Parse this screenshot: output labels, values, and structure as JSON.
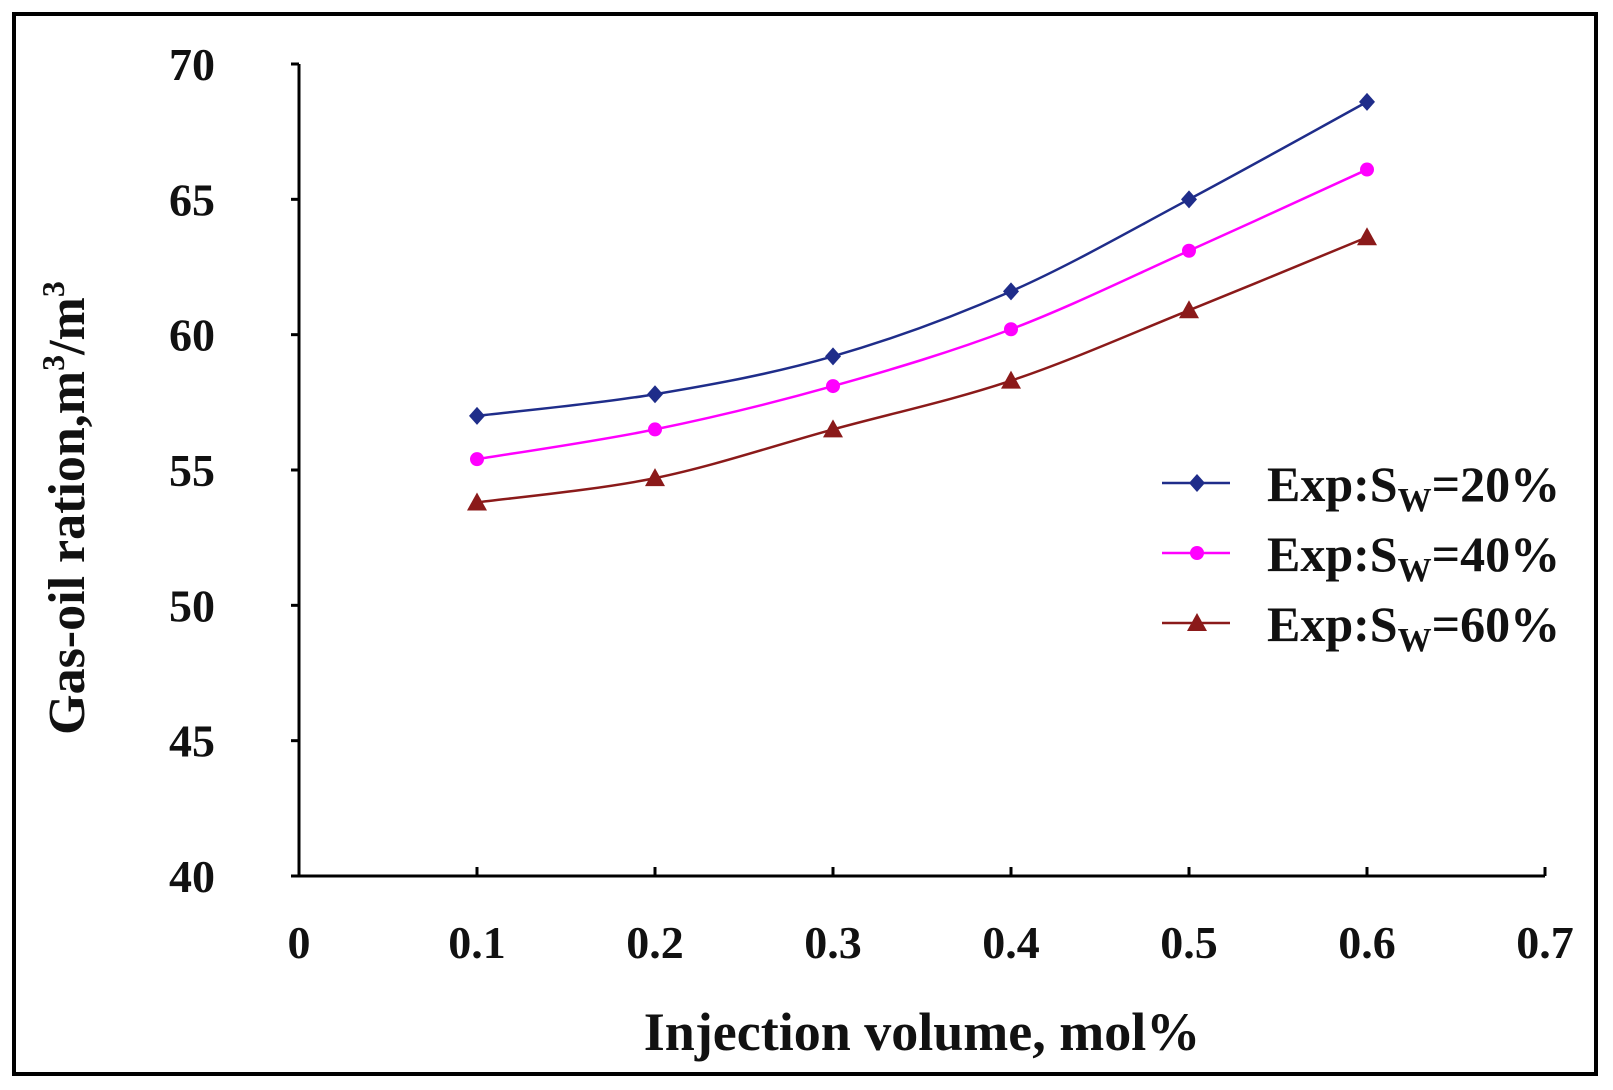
{
  "chart_data": {
    "type": "line",
    "title": "",
    "xlabel": "Injection volume, mol%",
    "ylabel_prefix": "Gas-oil ration,m",
    "ylabel_sup1": "3",
    "ylabel_mid": "/m",
    "ylabel_sup2": "3",
    "xlim": [
      0,
      0.7
    ],
    "ylim": [
      40,
      70
    ],
    "xticks": [
      0,
      0.1,
      0.2,
      0.3,
      0.4,
      0.5,
      0.6,
      0.7
    ],
    "xtick_labels": [
      "0",
      "0.1",
      "0.2",
      "0.3",
      "0.4",
      "0.5",
      "0.6",
      "0.7"
    ],
    "yticks": [
      40,
      45,
      50,
      55,
      60,
      65,
      70
    ],
    "ytick_labels": [
      "40",
      "45",
      "50",
      "55",
      "60",
      "65",
      "70"
    ],
    "grid": false,
    "legend_position": "right",
    "x": [
      0.1,
      0.2,
      0.3,
      0.4,
      0.5,
      0.6
    ],
    "series": [
      {
        "name": "Exp:Sw=20%",
        "label_main": "Exp:S",
        "label_sub": "W",
        "label_tail": "=20%",
        "color": "#1f2d8a",
        "marker": "diamond",
        "values": [
          57.0,
          57.8,
          59.2,
          61.6,
          65.0,
          68.6
        ]
      },
      {
        "name": "Exp:Sw=40%",
        "label_main": "Exp:S",
        "label_sub": "W",
        "label_tail": "=40%",
        "color": "#ff00ff",
        "marker": "circle",
        "values": [
          55.4,
          56.5,
          58.1,
          60.2,
          63.1,
          66.1
        ]
      },
      {
        "name": "Exp:Sw=60%",
        "label_main": "Exp:S",
        "label_sub": "W",
        "label_tail": "=60%",
        "color": "#8b1a1a",
        "marker": "triangle",
        "values": [
          53.8,
          54.7,
          56.5,
          58.3,
          60.9,
          63.6
        ]
      }
    ]
  }
}
